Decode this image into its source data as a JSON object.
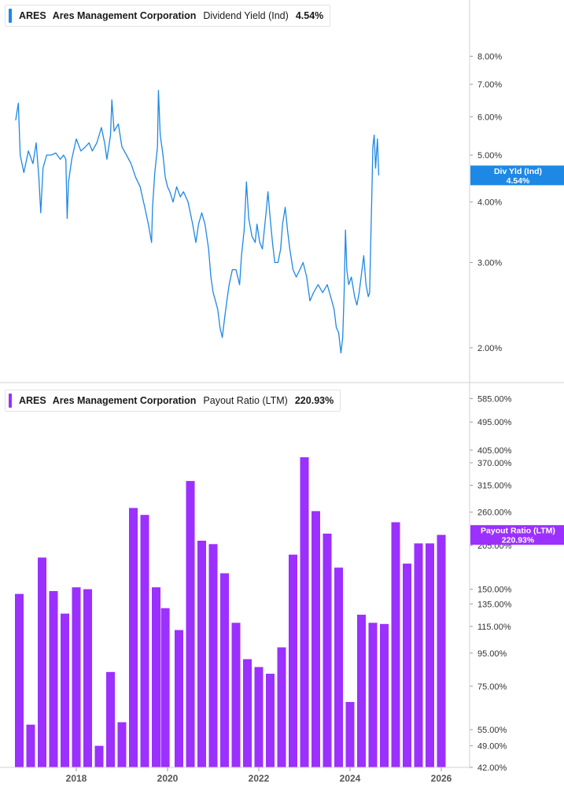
{
  "panels": {
    "top": {
      "ticker": "ARES",
      "company": "Ares Management Corporation",
      "metric": "Dividend Yield (Ind)",
      "value": "4.54%",
      "badge_line1": "Div Yld (Ind)",
      "badge_line2": "4.54%",
      "color": "#1e88e5"
    },
    "bottom": {
      "ticker": "ARES",
      "company": "Ares Management Corporation",
      "metric": "Payout Ratio (LTM)",
      "value": "220.93%",
      "badge_line1": "Payout Ratio (LTM)",
      "badge_line2": "220.93%",
      "color": "#9b30ff"
    }
  },
  "chart_data": [
    {
      "type": "line",
      "metric": "Dividend Yield (Ind)",
      "scale": "log",
      "ylim": [
        1.8,
        9.0
      ],
      "y_ticks": [
        {
          "value": 8,
          "label": "8.00%"
        },
        {
          "value": 7,
          "label": "7.00%"
        },
        {
          "value": 6,
          "label": "6.00%"
        },
        {
          "value": 5,
          "label": "5.00%"
        },
        {
          "value": 4,
          "label": "4.00%"
        },
        {
          "value": 3,
          "label": "3.00%"
        },
        {
          "value": 2,
          "label": "2.00%"
        }
      ],
      "last_value": 4.54,
      "x_unit": "year",
      "points": [
        [
          2016.67,
          5.9
        ],
        [
          2016.73,
          6.4
        ],
        [
          2016.77,
          5.0
        ],
        [
          2016.85,
          4.6
        ],
        [
          2016.95,
          5.1
        ],
        [
          2017.05,
          4.8
        ],
        [
          2017.12,
          5.3
        ],
        [
          2017.18,
          4.5
        ],
        [
          2017.22,
          3.8
        ],
        [
          2017.27,
          4.7
        ],
        [
          2017.35,
          5.0
        ],
        [
          2017.45,
          5.0
        ],
        [
          2017.55,
          5.05
        ],
        [
          2017.65,
          4.9
        ],
        [
          2017.72,
          5.0
        ],
        [
          2017.77,
          4.9
        ],
        [
          2017.8,
          3.7
        ],
        [
          2017.83,
          4.4
        ],
        [
          2017.9,
          4.9
        ],
        [
          2018.0,
          5.4
        ],
        [
          2018.1,
          5.1
        ],
        [
          2018.2,
          5.2
        ],
        [
          2018.28,
          5.3
        ],
        [
          2018.35,
          5.1
        ],
        [
          2018.45,
          5.3
        ],
        [
          2018.55,
          5.7
        ],
        [
          2018.62,
          5.3
        ],
        [
          2018.67,
          4.9
        ],
        [
          2018.75,
          5.5
        ],
        [
          2018.78,
          6.5
        ],
        [
          2018.83,
          5.6
        ],
        [
          2018.92,
          5.8
        ],
        [
          2019.0,
          5.2
        ],
        [
          2019.1,
          5.0
        ],
        [
          2019.2,
          4.8
        ],
        [
          2019.3,
          4.5
        ],
        [
          2019.4,
          4.3
        ],
        [
          2019.5,
          3.9
        ],
        [
          2019.58,
          3.6
        ],
        [
          2019.65,
          3.3
        ],
        [
          2019.67,
          3.9
        ],
        [
          2019.72,
          4.6
        ],
        [
          2019.78,
          5.2
        ],
        [
          2019.8,
          6.8
        ],
        [
          2019.84,
          5.5
        ],
        [
          2019.9,
          5.0
        ],
        [
          2019.95,
          4.5
        ],
        [
          2020.0,
          4.3
        ],
        [
          2020.05,
          4.2
        ],
        [
          2020.12,
          4.0
        ],
        [
          2020.2,
          4.3
        ],
        [
          2020.28,
          4.1
        ],
        [
          2020.35,
          4.2
        ],
        [
          2020.45,
          4.0
        ],
        [
          2020.55,
          3.6
        ],
        [
          2020.62,
          3.3
        ],
        [
          2020.68,
          3.6
        ],
        [
          2020.75,
          3.8
        ],
        [
          2020.82,
          3.6
        ],
        [
          2020.9,
          3.2
        ],
        [
          2020.95,
          2.8
        ],
        [
          2021.0,
          2.6
        ],
        [
          2021.05,
          2.5
        ],
        [
          2021.1,
          2.4
        ],
        [
          2021.15,
          2.2
        ],
        [
          2021.2,
          2.1
        ],
        [
          2021.25,
          2.3
        ],
        [
          2021.3,
          2.5
        ],
        [
          2021.35,
          2.7
        ],
        [
          2021.42,
          2.9
        ],
        [
          2021.5,
          2.9
        ],
        [
          2021.58,
          2.7
        ],
        [
          2021.62,
          3.1
        ],
        [
          2021.68,
          3.5
        ],
        [
          2021.73,
          4.4
        ],
        [
          2021.78,
          3.7
        ],
        [
          2021.85,
          3.4
        ],
        [
          2021.92,
          3.3
        ],
        [
          2021.96,
          3.6
        ],
        [
          2022.02,
          3.3
        ],
        [
          2022.08,
          3.2
        ],
        [
          2022.12,
          3.5
        ],
        [
          2022.17,
          3.9
        ],
        [
          2022.2,
          4.2
        ],
        [
          2022.25,
          3.7
        ],
        [
          2022.3,
          3.3
        ],
        [
          2022.35,
          3.0
        ],
        [
          2022.42,
          3.0
        ],
        [
          2022.48,
          3.2
        ],
        [
          2022.52,
          3.6
        ],
        [
          2022.58,
          3.9
        ],
        [
          2022.63,
          3.5
        ],
        [
          2022.68,
          3.2
        ],
        [
          2022.75,
          2.9
        ],
        [
          2022.82,
          2.8
        ],
        [
          2022.9,
          2.9
        ],
        [
          2022.97,
          3.0
        ],
        [
          2023.05,
          2.8
        ],
        [
          2023.12,
          2.5
        ],
        [
          2023.2,
          2.6
        ],
        [
          2023.3,
          2.7
        ],
        [
          2023.4,
          2.6
        ],
        [
          2023.5,
          2.7
        ],
        [
          2023.55,
          2.6
        ],
        [
          2023.6,
          2.5
        ],
        [
          2023.65,
          2.4
        ],
        [
          2023.7,
          2.2
        ],
        [
          2023.75,
          2.15
        ],
        [
          2023.8,
          1.95
        ],
        [
          2023.84,
          2.1
        ],
        [
          2023.87,
          2.6
        ],
        [
          2023.9,
          3.5
        ],
        [
          2023.93,
          2.9
        ],
        [
          2023.97,
          2.7
        ],
        [
          2024.03,
          2.8
        ],
        [
          2024.1,
          2.55
        ],
        [
          2024.15,
          2.45
        ],
        [
          2024.2,
          2.6
        ],
        [
          2024.3,
          3.1
        ],
        [
          2024.35,
          2.7
        ],
        [
          2024.4,
          2.55
        ],
        [
          2024.43,
          2.6
        ],
        [
          2024.45,
          3.2
        ],
        [
          2024.48,
          4.2
        ],
        [
          2024.5,
          5.2
        ],
        [
          2024.53,
          5.5
        ],
        [
          2024.56,
          4.7
        ],
        [
          2024.6,
          5.4
        ],
        [
          2024.63,
          4.54
        ]
      ]
    },
    {
      "type": "bar",
      "metric": "Payout Ratio (LTM)",
      "scale": "log",
      "ylim": [
        42,
        600
      ],
      "y_ticks": [
        {
          "value": 585,
          "label": "585.00%"
        },
        {
          "value": 495,
          "label": "495.00%"
        },
        {
          "value": 405,
          "label": "405.00%"
        },
        {
          "value": 370,
          "label": "370.00%"
        },
        {
          "value": 315,
          "label": "315.00%"
        },
        {
          "value": 260,
          "label": "260.00%"
        },
        {
          "value": 205,
          "label": "205.00%"
        },
        {
          "value": 150,
          "label": "150.00%"
        },
        {
          "value": 135,
          "label": "135.00%"
        },
        {
          "value": 115,
          "label": "115.00%"
        },
        {
          "value": 95,
          "label": "95.00%"
        },
        {
          "value": 75,
          "label": "75.00%"
        },
        {
          "value": 55,
          "label": "55.00%"
        },
        {
          "value": 49,
          "label": "49.00%"
        },
        {
          "value": 42,
          "label": "42.00%"
        }
      ],
      "last_value": 220.93,
      "x_unit": "year",
      "points": [
        [
          2016.75,
          145
        ],
        [
          2017.0,
          57
        ],
        [
          2017.25,
          188
        ],
        [
          2017.5,
          148
        ],
        [
          2017.75,
          126
        ],
        [
          2018.0,
          152
        ],
        [
          2018.25,
          150
        ],
        [
          2018.5,
          49
        ],
        [
          2018.75,
          83
        ],
        [
          2019.0,
          58
        ],
        [
          2019.25,
          268
        ],
        [
          2019.5,
          255
        ],
        [
          2019.75,
          152
        ],
        [
          2019.95,
          131
        ],
        [
          2020.25,
          112
        ],
        [
          2020.5,
          325
        ],
        [
          2020.75,
          212
        ],
        [
          2021.0,
          207
        ],
        [
          2021.25,
          168
        ],
        [
          2021.5,
          118
        ],
        [
          2021.75,
          91
        ],
        [
          2022.0,
          86
        ],
        [
          2022.25,
          82
        ],
        [
          2022.5,
          99
        ],
        [
          2022.75,
          192
        ],
        [
          2023.0,
          385
        ],
        [
          2023.25,
          262
        ],
        [
          2023.5,
          223
        ],
        [
          2023.75,
          175
        ],
        [
          2024.0,
          67
        ],
        [
          2024.25,
          125
        ],
        [
          2024.5,
          118
        ],
        [
          2024.75,
          117
        ],
        [
          2025.0,
          242
        ],
        [
          2025.25,
          180
        ],
        [
          2025.5,
          208
        ],
        [
          2025.75,
          208
        ],
        [
          2026.0,
          221
        ]
      ]
    }
  ],
  "x_axis": {
    "ticks": [
      {
        "value": 2018,
        "label": "2018"
      },
      {
        "value": 2020,
        "label": "2020"
      },
      {
        "value": 2022,
        "label": "2022"
      },
      {
        "value": 2024,
        "label": "2024"
      },
      {
        "value": 2026,
        "label": "2026"
      }
    ]
  }
}
